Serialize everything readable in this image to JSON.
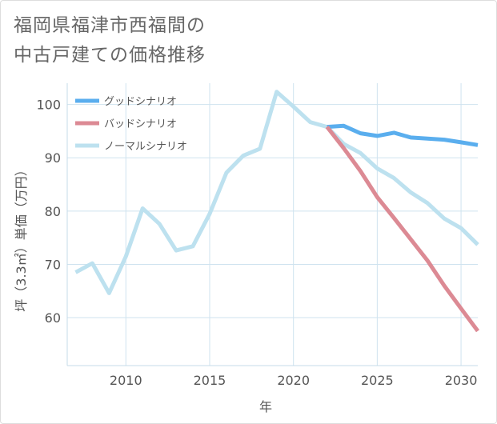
{
  "chart_data": {
    "type": "line",
    "title": [
      "福岡県福津市西福間の",
      "中古戸建ての価格推移"
    ],
    "xlabel": "年",
    "ylabel": "坪（3.3㎡）単価（万円）",
    "xlim": [
      2006.5,
      2031
    ],
    "ylim": [
      51,
      104
    ],
    "x_ticks": [
      2010,
      2015,
      2020,
      2025,
      2030
    ],
    "y_ticks": [
      60,
      70,
      80,
      90,
      100
    ],
    "grid": true,
    "legend_position": "top-left",
    "series": [
      {
        "name": "グッドシナリオ",
        "color": "#5aaeee",
        "x": [
          2022,
          2023,
          2024,
          2025,
          2026,
          2027,
          2028,
          2029,
          2030,
          2031
        ],
        "y": [
          95.8,
          96.0,
          94.6,
          94.1,
          94.7,
          93.8,
          93.6,
          93.4,
          92.9,
          92.4
        ]
      },
      {
        "name": "バッドシナリオ",
        "color": "#dc8a94",
        "x": [
          2022,
          2023,
          2024,
          2025,
          2026,
          2027,
          2028,
          2029,
          2030,
          2031
        ],
        "y": [
          95.8,
          91.8,
          87.5,
          82.6,
          78.7,
          74.7,
          70.7,
          66.0,
          61.7,
          57.5
        ]
      },
      {
        "name": "ノーマルシナリオ",
        "color": "#bde1ef",
        "x": [
          2007,
          2008,
          2009,
          2010,
          2011,
          2012,
          2013,
          2014,
          2015,
          2016,
          2017,
          2018,
          2019,
          2020,
          2021,
          2022,
          2023,
          2024,
          2025,
          2026,
          2027,
          2028,
          2029,
          2030,
          2031
        ],
        "y": [
          68.5,
          70.2,
          64.6,
          71.5,
          80.5,
          77.6,
          72.6,
          73.4,
          79.5,
          87.2,
          90.4,
          91.7,
          102.4,
          99.6,
          96.7,
          95.8,
          92.6,
          90.9,
          88.0,
          86.2,
          83.5,
          81.5,
          78.6,
          76.8,
          73.7
        ]
      }
    ]
  }
}
